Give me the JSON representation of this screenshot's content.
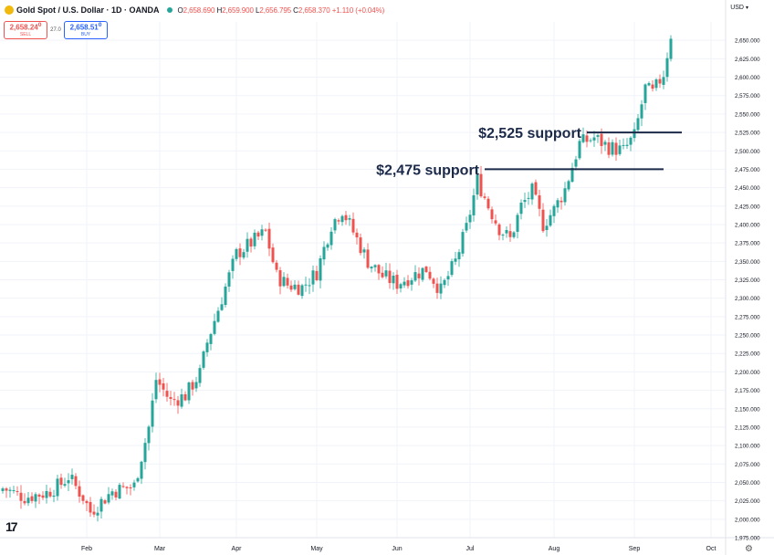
{
  "header": {
    "title": "Gold Spot / U.S. Dollar · 1D · OANDA",
    "ohlc": {
      "o_label": "O",
      "o": "2,658.690",
      "h_label": "H",
      "h": "2,659.900",
      "l_label": "L",
      "l": "2,656.795",
      "c_label": "C",
      "c": "2,658.370",
      "change": "+1.110 (+0.04%)"
    },
    "currency": "USD"
  },
  "trade": {
    "sell_price": "2,658.24",
    "sell_sup": "0",
    "sell_label": "SELL",
    "spread": "27.0",
    "buy_price": "2,658.51",
    "buy_sup": "0",
    "buy_label": "BUY"
  },
  "colors": {
    "up": "#26a69a",
    "down": "#ef5350",
    "annotation": "#1c2a4a",
    "grid": "#f0f3fa",
    "axis_text": "#131722"
  },
  "icons": {
    "symbol": "gold-coin-icon",
    "live": "live-dot-icon",
    "logo": "tradingview-logo-icon",
    "settings": "gear-icon"
  },
  "logo_text": "17",
  "settings_glyph": "⚙",
  "chart_data": {
    "type": "candlestick",
    "title": "",
    "xlabel": "",
    "ylabel": "",
    "ylim": [
      1975,
      2675
    ],
    "y_ticks": [
      1975,
      2000,
      2025,
      2050,
      2075,
      2100,
      2125,
      2150,
      2175,
      2200,
      2225,
      2250,
      2275,
      2300,
      2325,
      2350,
      2375,
      2400,
      2425,
      2450,
      2475,
      2500,
      2525,
      2550,
      2575,
      2600,
      2625,
      2650
    ],
    "y_tick_labels": [
      "1,975.000",
      "2,000.000",
      "2,025.000",
      "2,050.000",
      "2,075.000",
      "2,100.000",
      "2,125.000",
      "2,150.000",
      "2,175.000",
      "2,200.000",
      "2,225.000",
      "2,250.000",
      "2,275.000",
      "2,300.000",
      "2,325.000",
      "2,350.000",
      "2,375.000",
      "2,400.000",
      "2,425.000",
      "2,450.000",
      "2,475.000",
      "2,500.000",
      "2,525.000",
      "2,550.000",
      "2,575.000",
      "2,600.000",
      "2,625.000",
      "2,650.000"
    ],
    "x_labels": [
      {
        "label": "Feb",
        "index": 23
      },
      {
        "label": "Mar",
        "index": 43
      },
      {
        "label": "Apr",
        "index": 64
      },
      {
        "label": "May",
        "index": 86
      },
      {
        "label": "Jun",
        "index": 108
      },
      {
        "label": "Jul",
        "index": 128
      },
      {
        "label": "Aug",
        "index": 151
      },
      {
        "label": "Sep",
        "index": 173
      },
      {
        "label": "Oct",
        "index": 194
      }
    ],
    "grid": true,
    "close_path": [
      [
        0,
        2042
      ],
      [
        6,
        2030
      ],
      [
        12,
        2036
      ],
      [
        16,
        2048
      ],
      [
        18,
        2058
      ],
      [
        22,
        2030
      ],
      [
        24,
        2010
      ],
      [
        30,
        2038
      ],
      [
        36,
        2045
      ],
      [
        40,
        2125
      ],
      [
        42,
        2190
      ],
      [
        46,
        2160
      ],
      [
        50,
        2168
      ],
      [
        54,
        2198
      ],
      [
        56,
        2240
      ],
      [
        60,
        2300
      ],
      [
        64,
        2360
      ],
      [
        68,
        2375
      ],
      [
        72,
        2390
      ],
      [
        75,
        2330
      ],
      [
        78,
        2318
      ],
      [
        82,
        2315
      ],
      [
        86,
        2335
      ],
      [
        90,
        2400
      ],
      [
        93,
        2420
      ],
      [
        96,
        2390
      ],
      [
        100,
        2350
      ],
      [
        104,
        2330
      ],
      [
        108,
        2320
      ],
      [
        112,
        2330
      ],
      [
        116,
        2340
      ],
      [
        120,
        2310
      ],
      [
        124,
        2350
      ],
      [
        127,
        2395
      ],
      [
        130,
        2460
      ],
      [
        133,
        2425
      ],
      [
        136,
        2395
      ],
      [
        139,
        2380
      ],
      [
        142,
        2425
      ],
      [
        145,
        2445
      ],
      [
        148,
        2400
      ],
      [
        151,
        2420
      ],
      [
        154,
        2448
      ],
      [
        158,
        2510
      ],
      [
        162,
        2518
      ],
      [
        166,
        2505
      ],
      [
        170,
        2500
      ],
      [
        173,
        2520
      ],
      [
        176,
        2585
      ],
      [
        178,
        2578
      ],
      [
        181,
        2605
      ],
      [
        183,
        2658
      ]
    ],
    "annotations": [
      {
        "label": "$2,525 support",
        "value": 2525,
        "x_start": 160,
        "x_end": 186
      },
      {
        "label": "$2,475 support",
        "value": 2475,
        "x_start": 132,
        "x_end": 181
      }
    ]
  }
}
